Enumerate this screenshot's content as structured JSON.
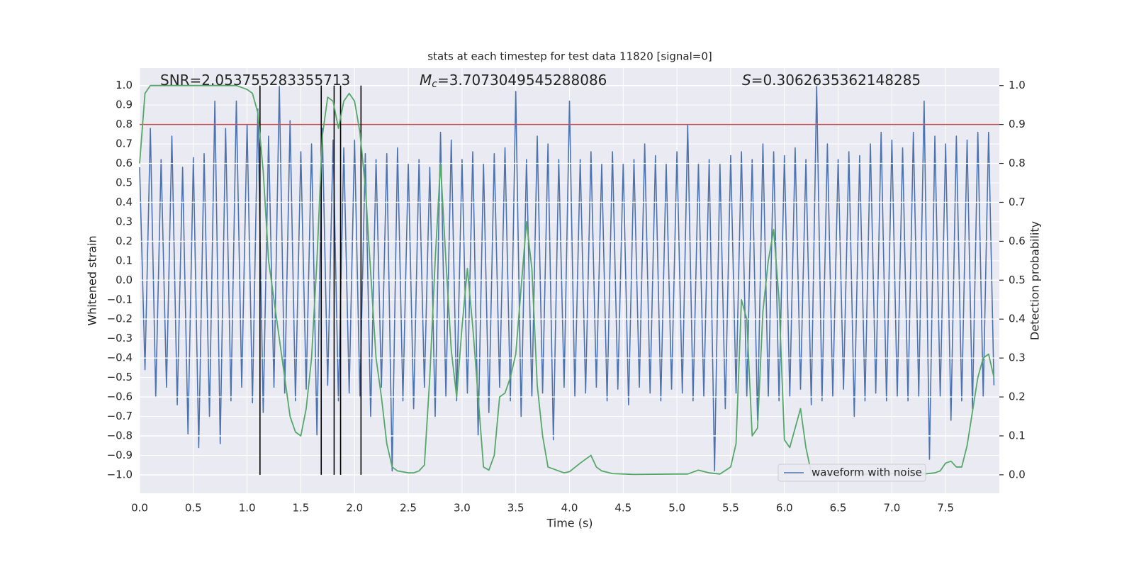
{
  "chart_data": {
    "type": "line",
    "title": "stats at each timestep for test data 11820 [signal=0]",
    "xlabel": "Time (s)",
    "ylabel": "Whitened strain",
    "y2label": "Detection probability",
    "xlim": [
      0,
      8
    ],
    "ylim": [
      -1.095,
      1.09
    ],
    "y2lim": [
      -0.0475,
      1.045
    ],
    "xticks": [
      {
        "value": 0,
        "label": "0.0"
      },
      0.5,
      {
        "value": 1,
        "label": "1.0"
      },
      1.5,
      {
        "value": 2,
        "label": "2.0"
      },
      2.5,
      {
        "value": 3,
        "label": "3.0"
      },
      3.5,
      {
        "value": 4,
        "label": "4.0"
      },
      4.5,
      {
        "value": 5,
        "label": "5.0"
      },
      5.5,
      {
        "value": 6,
        "label": "6.0"
      },
      6.5,
      {
        "value": 7,
        "label": "7.0"
      },
      7.5
    ],
    "yticks": [
      {
        "value": -1,
        "label": "−1.0"
      },
      {
        "value": -0.9,
        "label": "−0.9"
      },
      {
        "value": -0.8,
        "label": "−0.8"
      },
      {
        "value": -0.7,
        "label": "−0.7"
      },
      {
        "value": -0.6,
        "label": "−0.6"
      },
      {
        "value": -0.5,
        "label": "−0.5"
      },
      {
        "value": -0.4,
        "label": "−0.4"
      },
      {
        "value": -0.3,
        "label": "−0.3"
      },
      {
        "value": -0.2,
        "label": "−0.2"
      },
      {
        "value": -0.1,
        "label": "−0.1"
      },
      {
        "value": 0,
        "label": "0.0"
      },
      0.1,
      0.2,
      0.3,
      0.4,
      0.5,
      0.6,
      0.7,
      0.8,
      0.9,
      {
        "value": 1,
        "label": "1.0"
      }
    ],
    "y2ticks": [
      {
        "value": 0,
        "label": "0.0"
      },
      0.1,
      0.2,
      0.3,
      0.4,
      0.5,
      0.6,
      0.7,
      0.8,
      0.9,
      {
        "value": 1,
        "label": "1.0"
      }
    ],
    "grid": true,
    "legend_position": "lower right",
    "hline": {
      "y": 0.8,
      "color": "#c44e52"
    },
    "vlines": {
      "x": [
        1.12,
        1.69,
        1.81,
        1.87,
        2.06
      ],
      "ymin": -1,
      "ymax": 1,
      "color": "#000000"
    },
    "annotations": [
      {
        "text": "SNR=2.053755283355713"
      },
      {
        "symbol": "M",
        "subscript": "c",
        "text": "=3.7073049545288086"
      },
      {
        "symbol": "S",
        "text": "=0.3062635362148285"
      }
    ],
    "series": [
      {
        "name": "waveform with noise",
        "color": "#4c72b0",
        "x": [
          0,
          0.05,
          0.1,
          0.15,
          0.2,
          0.25,
          0.3,
          0.35,
          0.4,
          0.45,
          0.5,
          0.55,
          0.6,
          0.65,
          0.7,
          0.75,
          0.8,
          0.85,
          0.9,
          0.95,
          1,
          1.05,
          1.1,
          1.15,
          1.2,
          1.25,
          1.3,
          1.35,
          1.4,
          1.45,
          1.5,
          1.55,
          1.6,
          1.65,
          1.7,
          1.75,
          1.8,
          1.85,
          1.9,
          1.95,
          2,
          2.05,
          2.1,
          2.15,
          2.2,
          2.25,
          2.3,
          2.35,
          2.4,
          2.45,
          2.5,
          2.55,
          2.6,
          2.65,
          2.7,
          2.75,
          2.8,
          2.85,
          2.9,
          2.95,
          3,
          3.05,
          3.1,
          3.15,
          3.2,
          3.25,
          3.3,
          3.35,
          3.4,
          3.45,
          3.5,
          3.55,
          3.6,
          3.65,
          3.7,
          3.75,
          3.8,
          3.85,
          3.9,
          3.95,
          4,
          4.05,
          4.1,
          4.15,
          4.2,
          4.25,
          4.3,
          4.35,
          4.4,
          4.45,
          4.5,
          4.55,
          4.6,
          4.65,
          4.7,
          4.75,
          4.8,
          4.85,
          4.9,
          4.95,
          5,
          5.05,
          5.1,
          5.15,
          5.2,
          5.25,
          5.3,
          5.35,
          5.4,
          5.45,
          5.5,
          5.55,
          5.6,
          5.65,
          5.7,
          5.75,
          5.8,
          5.85,
          5.9,
          5.95,
          6,
          6.05,
          6.1,
          6.15,
          6.2,
          6.25,
          6.3,
          6.35,
          6.4,
          6.45,
          6.5,
          6.55,
          6.6,
          6.65,
          6.7,
          6.75,
          6.8,
          6.85,
          6.9,
          6.95,
          7,
          7.05,
          7.1,
          7.15,
          7.2,
          7.25,
          7.3,
          7.35,
          7.4,
          7.45,
          7.5,
          7.55,
          7.6,
          7.65,
          7.7,
          7.75,
          7.8,
          7.85,
          7.9,
          7.95
        ],
        "values": [
          0.58,
          -0.46,
          0.78,
          -0.6,
          0.62,
          -0.55,
          0.74,
          -0.64,
          0.58,
          -0.79,
          0.63,
          -0.86,
          0.65,
          -0.7,
          0.92,
          -0.84,
          0.78,
          -0.62,
          0.92,
          -0.55,
          0.8,
          -0.63,
          0.88,
          -0.68,
          0.74,
          -0.55,
          1.0,
          -0.58,
          0.82,
          -0.62,
          0.66,
          -0.56,
          0.7,
          -0.8,
          0.78,
          -0.54,
          0.72,
          -0.62,
          0.68,
          -0.58,
          0.72,
          -0.6,
          0.65,
          -0.7,
          0.62,
          -0.55,
          0.65,
          -0.98,
          0.68,
          -0.62,
          0.6,
          -0.66,
          0.62,
          -0.55,
          0.58,
          -0.7,
          0.76,
          -0.6,
          0.72,
          -0.62,
          0.62,
          -0.58,
          0.66,
          -0.8,
          0.6,
          -0.68,
          0.65,
          -0.55,
          0.68,
          -0.62,
          0.97,
          -0.7,
          0.62,
          -0.6,
          0.74,
          -0.58,
          0.7,
          -0.82,
          0.62,
          -0.55,
          0.92,
          -0.6,
          0.62,
          -0.58,
          0.66,
          -0.55,
          0.6,
          -0.62,
          0.66,
          -0.56,
          0.6,
          -0.64,
          0.62,
          -0.55,
          0.7,
          -0.58,
          0.64,
          -0.62,
          0.6,
          -0.56,
          0.66,
          -0.58,
          0.8,
          -0.62,
          0.6,
          -0.6,
          0.62,
          -0.98,
          0.6,
          -0.66,
          0.64,
          -0.58,
          0.66,
          -0.6,
          0.62,
          -0.72,
          0.7,
          -0.6,
          0.66,
          -0.62,
          0.64,
          -0.6,
          0.68,
          -0.56,
          0.62,
          -0.64,
          1.0,
          -0.62,
          0.7,
          -0.6,
          0.62,
          -0.56,
          0.66,
          -0.7,
          0.64,
          -0.62,
          0.7,
          -0.58,
          0.76,
          -0.62,
          0.72,
          -0.6,
          0.68,
          -0.62,
          0.76,
          -0.6,
          0.92,
          -0.92,
          0.74,
          -0.6,
          0.7,
          -0.72,
          0.74,
          -0.62,
          0.72,
          -0.66,
          0.76,
          -0.6,
          0.76,
          -0.54
        ]
      },
      {
        "color": "#55a868",
        "axis": "y2",
        "x": [
          0,
          0.05,
          0.1,
          0.9,
          1,
          1.05,
          1.1,
          1.15,
          1.2,
          1.3,
          1.35,
          1.4,
          1.45,
          1.5,
          1.55,
          1.6,
          1.65,
          1.7,
          1.75,
          1.8,
          1.85,
          1.9,
          1.95,
          2,
          2.05,
          2.1,
          2.15,
          2.2,
          2.25,
          2.3,
          2.35,
          2.4,
          2.5,
          2.55,
          2.6,
          2.65,
          2.7,
          2.75,
          2.8,
          2.85,
          2.9,
          2.95,
          3,
          3.05,
          3.1,
          3.15,
          3.2,
          3.25,
          3.3,
          3.35,
          3.4,
          3.45,
          3.5,
          3.55,
          3.6,
          3.65,
          3.7,
          3.75,
          3.8,
          3.85,
          3.9,
          3.95,
          4,
          4.1,
          4.2,
          4.25,
          4.3,
          4.4,
          4.6,
          5,
          5.1,
          5.2,
          5.3,
          5.4,
          5.5,
          5.55,
          5.6,
          5.65,
          5.7,
          5.75,
          5.8,
          5.85,
          5.9,
          5.95,
          6,
          6.05,
          6.15,
          6.2,
          6.25,
          6.3,
          6.5,
          6.65,
          6.75,
          7,
          7.1,
          7.2,
          7.3,
          7.4,
          7.45,
          7.5,
          7.55,
          7.6,
          7.65,
          7.7,
          7.8,
          7.85,
          7.9,
          7.95
        ],
        "values": [
          0.8,
          0.98,
          1.0,
          1.0,
          0.99,
          0.98,
          0.93,
          0.78,
          0.55,
          0.35,
          0.25,
          0.15,
          0.11,
          0.1,
          0.17,
          0.3,
          0.55,
          0.87,
          0.97,
          0.96,
          0.89,
          0.96,
          0.98,
          0.96,
          0.88,
          0.74,
          0.52,
          0.3,
          0.2,
          0.08,
          0.02,
          0.01,
          0.005,
          0.005,
          0.01,
          0.025,
          0.25,
          0.55,
          0.8,
          0.55,
          0.32,
          0.2,
          0.38,
          0.53,
          0.38,
          0.2,
          0.02,
          0.012,
          0.05,
          0.2,
          0.21,
          0.25,
          0.31,
          0.48,
          0.65,
          0.53,
          0.23,
          0.1,
          0.02,
          0.015,
          0.01,
          0.005,
          0.008,
          0.03,
          0.05,
          0.02,
          0.01,
          0.003,
          0.001,
          0.002,
          0.002,
          0.012,
          0.005,
          0.002,
          0.02,
          0.08,
          0.45,
          0.4,
          0.1,
          0.12,
          0.42,
          0.55,
          0.63,
          0.45,
          0.09,
          0.07,
          0.17,
          0.07,
          0.005,
          0.002,
          0.001,
          0.005,
          0.002,
          0.003,
          0.005,
          0.012,
          0.002,
          0.005,
          0.01,
          0.03,
          0.035,
          0.02,
          0.02,
          0.075,
          0.25,
          0.3,
          0.31,
          0.25
        ]
      }
    ]
  }
}
